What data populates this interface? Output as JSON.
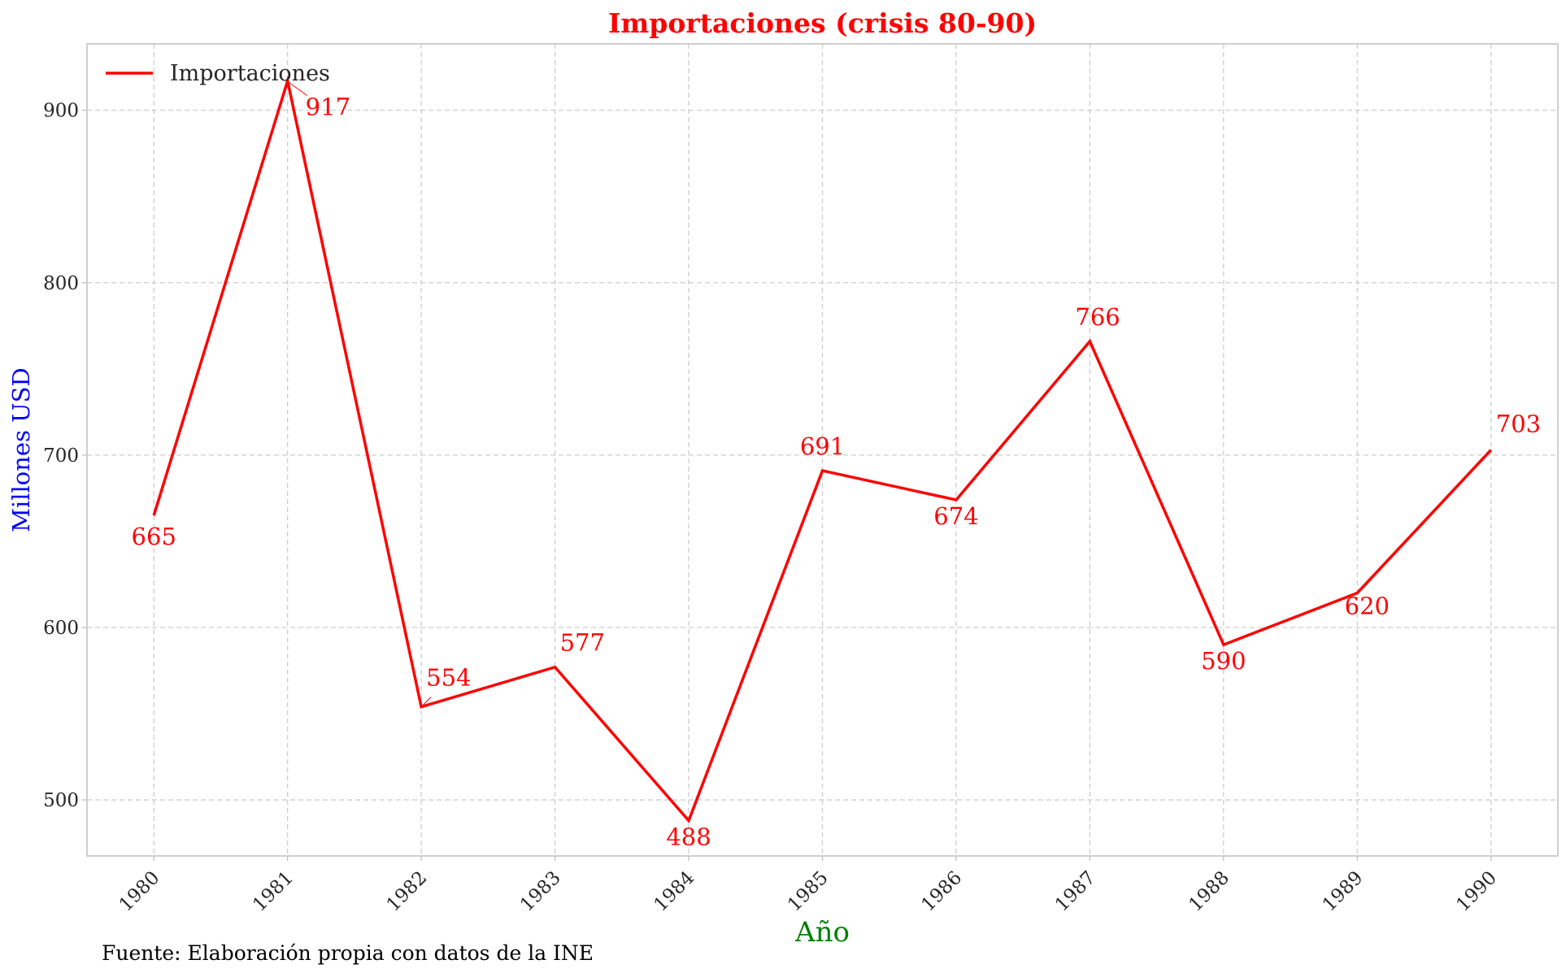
{
  "chart_data": {
    "type": "line",
    "title": "Importaciones (crisis 80-90)",
    "xlabel": "Año",
    "ylabel": "Millones USD",
    "x": [
      1980,
      1981,
      1982,
      1983,
      1984,
      1985,
      1986,
      1987,
      1988,
      1989,
      1990
    ],
    "x_tick_labels": [
      "1980",
      "1981",
      "1982",
      "1983",
      "1984",
      "1985",
      "1986",
      "1987",
      "1988",
      "1989",
      "1990"
    ],
    "series": [
      {
        "name": "Importaciones",
        "values": [
          665,
          917,
          554,
          577,
          488,
          691,
          674,
          766,
          590,
          620,
          703
        ],
        "color": "#ff0000"
      }
    ],
    "data_labels": [
      "665",
      "917",
      "554",
      "577",
      "488",
      "691",
      "674",
      "766",
      "590",
      "620",
      "703"
    ],
    "yticks": [
      500,
      600,
      700,
      800,
      900
    ],
    "y_tick_labels": [
      "500",
      "600",
      "700",
      "800",
      "900"
    ],
    "xlim": [
      1979.5,
      1990.5
    ],
    "ylim": [
      467.5,
      938.5
    ],
    "grid": true,
    "legend_position": "top-left",
    "colors": {
      "title": "#ff0000",
      "xlabel": "#008000",
      "ylabel": "#0000ff",
      "line": "#ff0000",
      "grid": "#cccccc"
    }
  },
  "footer": {
    "source": "Fuente: Elaboración propia con datos de la INE"
  }
}
